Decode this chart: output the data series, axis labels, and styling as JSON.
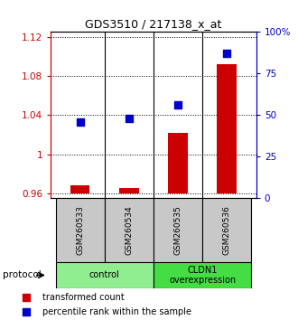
{
  "title": "GDS3510 / 217138_x_at",
  "samples": [
    "GSM260533",
    "GSM260534",
    "GSM260535",
    "GSM260536"
  ],
  "red_values": [
    0.968,
    0.966,
    1.022,
    1.092
  ],
  "blue_pct": [
    46,
    48,
    56,
    87
  ],
  "ylim_left": [
    0.955,
    1.125
  ],
  "ylim_right": [
    0.0,
    1.0
  ],
  "yticks_left": [
    0.96,
    1.0,
    1.04,
    1.08,
    1.12
  ],
  "ytick_labels_left": [
    "0.96",
    "1",
    "1.04",
    "1.08",
    "1.12"
  ],
  "yticks_right": [
    0.0,
    0.25,
    0.5,
    0.75,
    1.0
  ],
  "ytick_labels_right": [
    "0",
    "25",
    "50",
    "75",
    "100%"
  ],
  "groups": [
    {
      "label": "control",
      "samples": [
        0,
        1
      ],
      "color": "#90ee90"
    },
    {
      "label": "CLDN1\noverexpression",
      "samples": [
        2,
        3
      ],
      "color": "#44dd44"
    }
  ],
  "bar_color": "#cc0000",
  "dot_color": "#0000cc",
  "dot_size": 35,
  "sample_box_color": "#c8c8c8",
  "protocol_label": "protocol",
  "legend_red": "transformed count",
  "legend_blue": "percentile rank within the sample"
}
